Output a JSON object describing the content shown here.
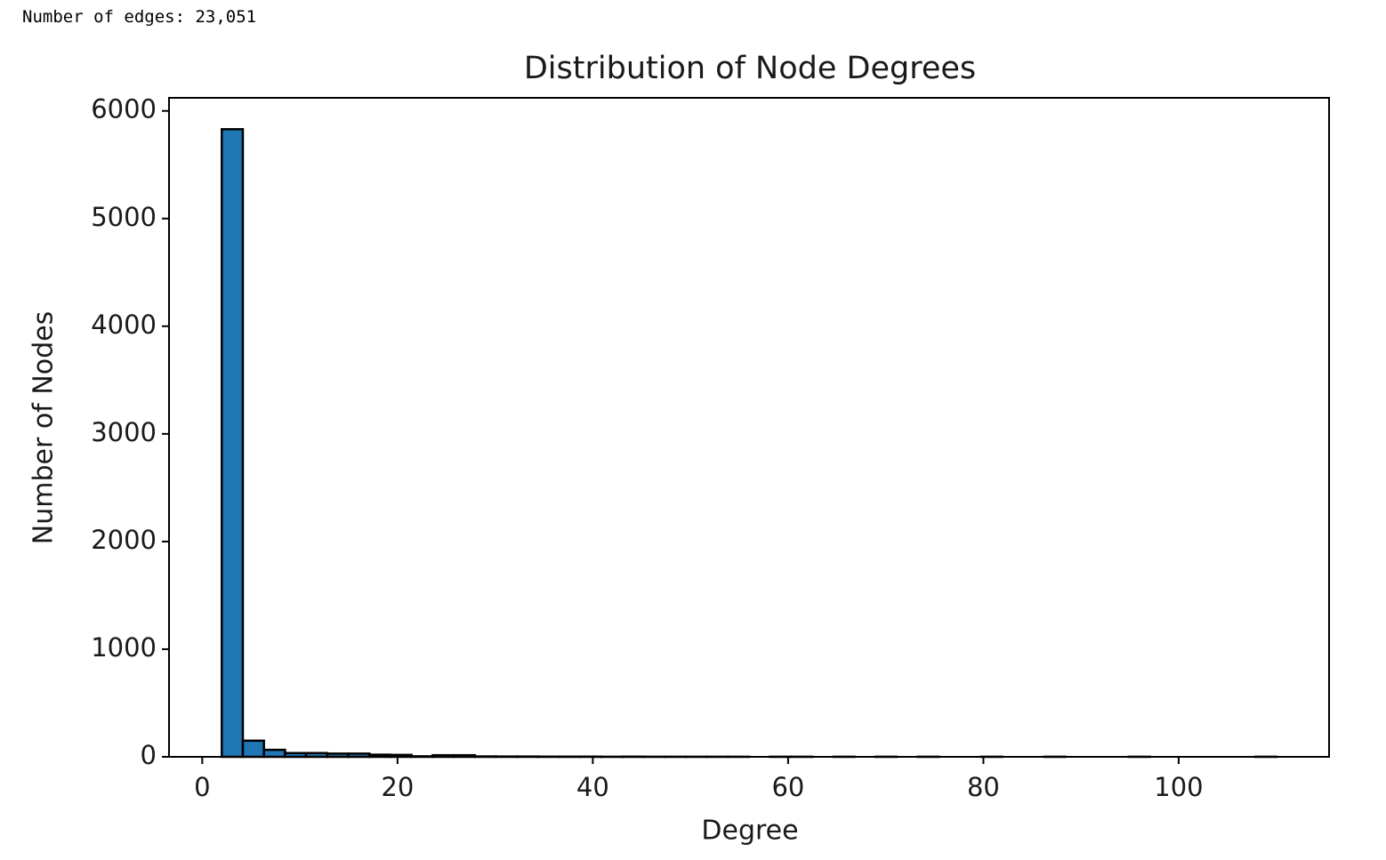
{
  "output_text": "Number of edges: 23,051",
  "chart_data": {
    "type": "histogram",
    "title": "Distribution of Node Degrees",
    "x_label": "Degree",
    "y_label": "Number of Nodes",
    "bins": [
      2,
      4.16,
      6.32,
      8.48,
      10.64,
      12.8,
      14.96,
      17.12,
      19.28,
      21.44,
      23.6,
      25.76,
      27.92,
      30.08,
      32.24,
      34.4,
      36.56,
      38.72,
      40.88,
      43.04,
      45.2,
      47.36,
      49.52,
      51.68,
      53.84,
      56,
      58.16,
      60.32,
      62.48,
      64.64,
      66.8,
      68.96,
      71.12,
      73.28,
      75.44,
      77.6,
      79.76,
      81.92,
      84.08,
      86.24,
      88.4,
      90.56,
      92.72,
      94.88,
      97.04,
      99.2,
      101.36,
      103.52,
      105.68,
      107.84,
      110
    ],
    "values": [
      5830,
      150,
      65,
      35,
      35,
      30,
      30,
      20,
      18,
      5,
      15,
      15,
      4,
      3,
      3,
      2,
      2,
      2,
      1,
      2,
      1,
      1,
      1,
      1,
      1,
      0,
      1,
      1,
      0,
      1,
      0,
      1,
      0,
      1,
      0,
      0,
      1,
      0,
      0,
      1,
      0,
      0,
      0,
      1,
      0,
      0,
      0,
      0,
      0,
      1
    ],
    "color": "#1f77b4",
    "edgecolor": "#000000",
    "xlim": [
      -3.4,
      115.4
    ],
    "ylim": [
      0,
      6121.5
    ],
    "xticks": [
      0,
      20,
      40,
      60,
      80,
      100
    ],
    "yticks": [
      0,
      1000,
      2000,
      3000,
      4000,
      5000,
      6000
    ],
    "grid": false
  }
}
